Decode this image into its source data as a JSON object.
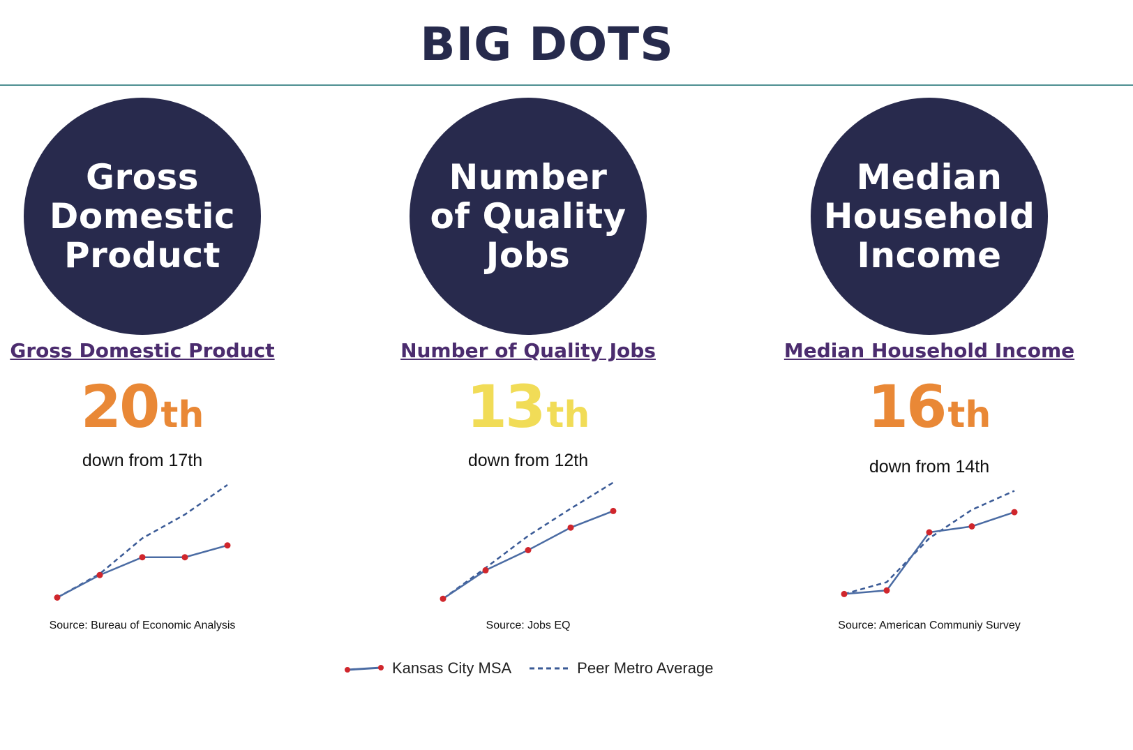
{
  "page": {
    "title": "BIG DOTS"
  },
  "colors": {
    "dot": "#282a4d",
    "kc_line": "#4a6ba3",
    "kc_marker": "#d0262c",
    "peer_line": "#3a5a96",
    "rank_orange": "#e98836",
    "rank_yellow": "#f1dc57"
  },
  "metrics": [
    {
      "dot_text": "Gross\nDomestic\nProduct",
      "link_label": "Gross Domestic Product",
      "rank_number": "20",
      "rank_suffix": "th",
      "rank_color": "#e98836",
      "change_text": "down from 17th",
      "source": "Source: Bureau of Economic Analysis"
    },
    {
      "dot_text": "Number\nof Quality\nJobs",
      "link_label": "Number of Quality Jobs",
      "rank_number": "13",
      "rank_suffix": "th",
      "rank_color": "#f1dc57",
      "change_text": "down from 12th",
      "source": "Source: Jobs EQ"
    },
    {
      "dot_text": "Median\nHousehold\nIncome",
      "link_label": "Median Household Income",
      "rank_number": "16",
      "rank_suffix": "th",
      "rank_color": "#e98836",
      "change_text": "down from 14th",
      "source": "Source: American Communiy Survey"
    }
  ],
  "legend": {
    "kc_label": "Kansas City MSA",
    "peer_label": "Peer Metro Average"
  },
  "chart_data": [
    {
      "type": "line",
      "title": "Gross Domestic Product",
      "xlabel": "",
      "ylabel": "",
      "ylim": [
        0,
        100
      ],
      "series": [
        {
          "name": "Kansas City MSA",
          "style": "solid-markers",
          "x": [
            0,
            1,
            2,
            3,
            4
          ],
          "values": [
            5,
            24,
            39,
            39,
            49
          ]
        },
        {
          "name": "Peer Metro Average",
          "style": "dashed",
          "x": [
            0,
            1,
            2,
            3,
            4
          ],
          "values": [
            5,
            25,
            55,
            75,
            100
          ]
        }
      ]
    },
    {
      "type": "line",
      "title": "Number of Quality Jobs",
      "xlabel": "",
      "ylabel": "",
      "ylim": [
        0,
        100
      ],
      "series": [
        {
          "name": "Kansas City MSA",
          "style": "solid-markers",
          "x": [
            0,
            1,
            2,
            3,
            4
          ],
          "values": [
            4,
            28,
            45,
            64,
            78
          ]
        },
        {
          "name": "Peer Metro Average",
          "style": "dashed",
          "x": [
            0,
            1,
            2,
            3,
            4
          ],
          "values": [
            4,
            30,
            57,
            80,
            102
          ]
        }
      ]
    },
    {
      "type": "line",
      "title": "Median Household Income",
      "xlabel": "",
      "ylabel": "",
      "ylim": [
        0,
        100
      ],
      "series": [
        {
          "name": "Kansas City MSA",
          "style": "solid-markers",
          "x": [
            0,
            1,
            2,
            3,
            4
          ],
          "values": [
            8,
            11,
            60,
            65,
            77
          ]
        },
        {
          "name": "Peer Metro Average",
          "style": "dashed",
          "x": [
            0,
            1,
            2,
            3,
            4
          ],
          "values": [
            8,
            18,
            55,
            79,
            95
          ]
        }
      ]
    }
  ]
}
